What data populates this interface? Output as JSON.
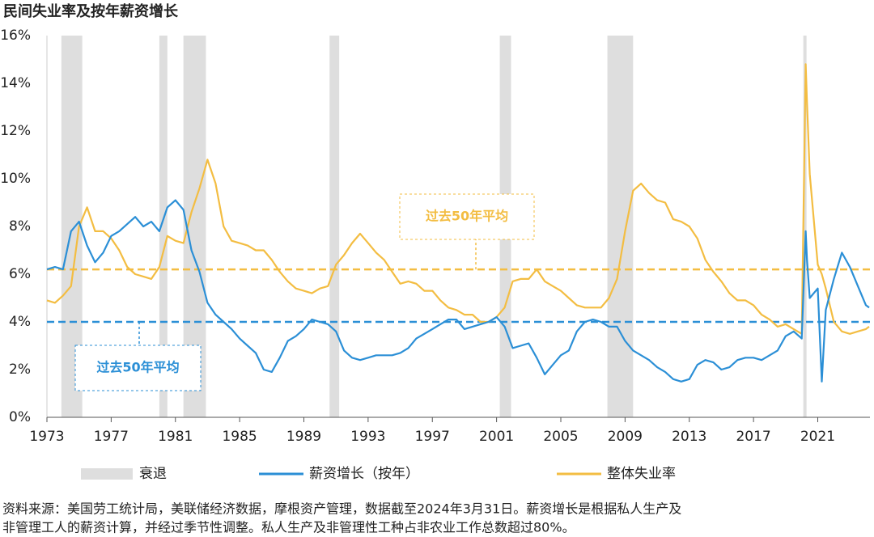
{
  "chart_data": {
    "type": "line",
    "title": "民间失业率及按年薪资增长",
    "x": [
      1973,
      1973.5,
      1974,
      1974.5,
      1975,
      1975.5,
      1976,
      1976.5,
      1977,
      1977.5,
      1978,
      1978.5,
      1979,
      1979.5,
      1980,
      1980.5,
      1981,
      1981.5,
      1982,
      1982.5,
      1983,
      1983.5,
      1984,
      1984.5,
      1985,
      1985.5,
      1986,
      1986.5,
      1987,
      1987.5,
      1988,
      1988.5,
      1989,
      1989.5,
      1990,
      1990.5,
      1991,
      1991.5,
      1992,
      1992.5,
      1993,
      1993.5,
      1994,
      1994.5,
      1995,
      1995.5,
      1996,
      1996.5,
      1997,
      1997.5,
      1998,
      1998.5,
      1999,
      1999.5,
      2000,
      2000.5,
      2001,
      2001.5,
      2002,
      2002.5,
      2003,
      2003.5,
      2004,
      2004.5,
      2005,
      2005.5,
      2006,
      2006.5,
      2007,
      2007.5,
      2008,
      2008.5,
      2009,
      2009.5,
      2010,
      2010.5,
      2011,
      2011.5,
      2012,
      2012.5,
      2013,
      2013.5,
      2014,
      2014.5,
      2015,
      2015.5,
      2016,
      2016.5,
      2017,
      2017.5,
      2018,
      2018.5,
      2019,
      2019.5,
      2020,
      2020.25,
      2020.33,
      2020.5,
      2021,
      2021.25,
      2021.5,
      2022,
      2022.5,
      2023,
      2023.5,
      2024,
      2024.2
    ],
    "series": [
      {
        "name": "薪资增长（按年）",
        "color": "#2b8fd6",
        "values": [
          6.2,
          6.3,
          6.2,
          7.8,
          8.2,
          7.2,
          6.5,
          6.9,
          7.6,
          7.8,
          8.1,
          8.4,
          8.0,
          8.2,
          7.8,
          8.8,
          9.1,
          8.7,
          7.0,
          6.1,
          4.8,
          4.3,
          4.0,
          3.7,
          3.3,
          3.0,
          2.7,
          2.0,
          1.9,
          2.5,
          3.2,
          3.4,
          3.7,
          4.1,
          4.0,
          3.9,
          3.6,
          2.8,
          2.5,
          2.4,
          2.5,
          2.6,
          2.6,
          2.6,
          2.7,
          2.9,
          3.3,
          3.5,
          3.7,
          3.9,
          4.1,
          4.1,
          3.7,
          3.8,
          3.9,
          4.0,
          4.2,
          3.8,
          2.9,
          3.0,
          3.1,
          2.5,
          1.8,
          2.2,
          2.6,
          2.8,
          3.6,
          4.0,
          4.1,
          4.0,
          3.8,
          3.8,
          3.2,
          2.8,
          2.6,
          2.4,
          2.1,
          1.9,
          1.6,
          1.5,
          1.6,
          2.2,
          2.4,
          2.3,
          2.0,
          2.1,
          2.4,
          2.5,
          2.5,
          2.4,
          2.6,
          2.8,
          3.4,
          3.6,
          3.3,
          7.8,
          6.6,
          5.0,
          5.4,
          1.5,
          4.5,
          5.8,
          6.9,
          6.3,
          5.5,
          4.7,
          4.6
        ]
      },
      {
        "name": "整体失业率",
        "color": "#f3bd42",
        "values": [
          4.9,
          4.8,
          5.1,
          5.5,
          8.0,
          8.8,
          7.8,
          7.8,
          7.5,
          7.0,
          6.3,
          6.0,
          5.9,
          5.8,
          6.3,
          7.6,
          7.4,
          7.3,
          8.6,
          9.6,
          10.8,
          9.8,
          8.0,
          7.4,
          7.3,
          7.2,
          7.0,
          7.0,
          6.6,
          6.1,
          5.7,
          5.4,
          5.3,
          5.2,
          5.4,
          5.5,
          6.4,
          6.8,
          7.3,
          7.7,
          7.3,
          6.9,
          6.6,
          6.1,
          5.6,
          5.7,
          5.6,
          5.3,
          5.3,
          4.9,
          4.6,
          4.5,
          4.3,
          4.3,
          4.0,
          4.0,
          4.2,
          4.6,
          5.7,
          5.8,
          5.8,
          6.2,
          5.7,
          5.5,
          5.3,
          5.0,
          4.7,
          4.6,
          4.6,
          4.6,
          5.0,
          5.8,
          7.8,
          9.5,
          9.8,
          9.4,
          9.1,
          9.0,
          8.3,
          8.2,
          8.0,
          7.5,
          6.6,
          6.1,
          5.7,
          5.2,
          4.9,
          4.9,
          4.7,
          4.3,
          4.1,
          3.8,
          3.9,
          3.7,
          3.5,
          14.8,
          13.2,
          10.2,
          6.4,
          6.0,
          5.4,
          4.0,
          3.6,
          3.5,
          3.6,
          3.7,
          3.8
        ]
      }
    ],
    "recession_name": "衰退",
    "recession_color": "#dedede",
    "recessions": [
      [
        1973.9,
        1975.2
      ],
      [
        1980.0,
        1980.5
      ],
      [
        1981.5,
        1982.9
      ],
      [
        1990.6,
        1991.2
      ],
      [
        2001.2,
        2001.9
      ],
      [
        2007.9,
        2009.5
      ],
      [
        2020.1,
        2020.3
      ]
    ],
    "averages": [
      {
        "label": "过去50年平均",
        "value": 6.2,
        "color": "#f3bd42"
      },
      {
        "label": "过去50年平均",
        "value": 4.0,
        "color": "#2b8fd6"
      }
    ],
    "xlim": [
      1973,
      2024.25
    ],
    "xticks": [
      1973,
      1977,
      1981,
      1985,
      1989,
      1993,
      1997,
      2001,
      2005,
      2009,
      2013,
      2017,
      2021
    ],
    "ylim": [
      0,
      16
    ],
    "yticks": [
      {
        "value": 0,
        "label": "0%"
      },
      {
        "value": 2,
        "label": "2%"
      },
      {
        "value": 4,
        "label": "4%"
      },
      {
        "value": 6,
        "label": "6%"
      },
      {
        "value": 8,
        "label": "8%"
      },
      {
        "value": 10,
        "label": "10%"
      },
      {
        "value": 12,
        "label": "12%"
      },
      {
        "value": 14,
        "label": "14%"
      },
      {
        "value": 16,
        "label": "16%"
      }
    ],
    "notes": [
      "资料来源：美国劳工统计局，美联储经济数据，摩根资产管理，数据截至2024年3月31日。薪资增长是根据私人生产及",
      "非管理工人的薪资计算，并经过季节性调整。私人生产及非管理性工种占非农业工作总数超过80%。"
    ]
  }
}
